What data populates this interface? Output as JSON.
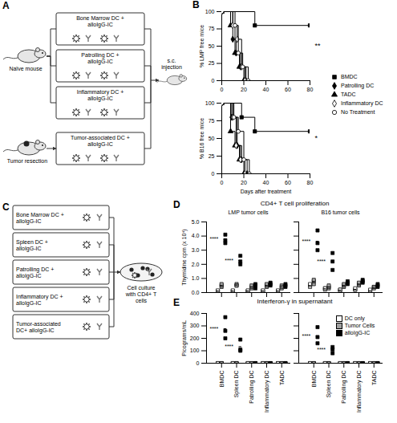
{
  "diagrams": {
    "A": {
      "letter": "A",
      "source": "Naïve mouse",
      "tumor_source": "Tumor resection",
      "injection": "s.c. injection",
      "boxes": [
        "Bone Marrow DC + alloIgG-IC",
        "Patrolling DC + alloIgG-IC",
        "Inflammatory DC + alloIgG-IC"
      ],
      "tumor_box": "Tumor-associated DC + alloIgG-IC"
    },
    "C": {
      "letter": "C",
      "boxes": [
        "Bone Marrow DC + alloIgG-IC",
        "Spleen DC + alloIgG-IC",
        "Patrolling DC + alloIgG-IC",
        "Inflammatory DC + alloIgG-IC",
        "Tumor-associated DC+ alloIgG-IC"
      ],
      "culture": "Cell culture with CD4+ T cells"
    }
  },
  "panels": {
    "B": {
      "letter": "B"
    },
    "D": {
      "letter": "D",
      "title": "CD4+ T cell proliferation"
    },
    "E": {
      "letter": "E",
      "title": "Interferon-γ in supernatant"
    }
  },
  "chart_data": [
    {
      "type": "line",
      "ylabel": "% LMP free mice",
      "xlim": [
        0,
        80
      ],
      "xticks": [
        0,
        20,
        40,
        60,
        80
      ],
      "ylim": [
        0,
        100
      ],
      "yticks": [
        0,
        25,
        50,
        75,
        100
      ],
      "legend": "right",
      "annotations": [
        {
          "text": "**"
        }
      ],
      "series": [
        {
          "name": "BMDC",
          "color": "#000000",
          "marker": "square",
          "x": [
            0,
            30,
            80
          ],
          "values": [
            100,
            80,
            80
          ]
        },
        {
          "name": "Patrolling DC",
          "color": "#000000",
          "marker": "diamond",
          "x": [
            0,
            10,
            13,
            17,
            20
          ],
          "values": [
            100,
            60,
            40,
            20,
            0
          ]
        },
        {
          "name": "TADC",
          "color": "#000000",
          "marker": "triangle",
          "x": [
            0,
            8,
            12,
            16,
            22
          ],
          "values": [
            100,
            80,
            40,
            20,
            0
          ]
        },
        {
          "name": "Inflammatory DC",
          "color": "#000000",
          "marker": "diamond-open",
          "x": [
            0,
            10,
            14,
            18,
            21
          ],
          "values": [
            100,
            80,
            60,
            20,
            0
          ]
        },
        {
          "name": "No Treatment",
          "color": "#000000",
          "marker": "circle-open",
          "x": [
            0,
            12,
            15,
            19,
            24
          ],
          "values": [
            100,
            80,
            40,
            20,
            0
          ]
        }
      ]
    },
    {
      "type": "line",
      "ylabel": "% B16 free mice",
      "xlabel": "Days after treatment",
      "xlim": [
        0,
        80
      ],
      "xticks": [
        0,
        20,
        40,
        60,
        80
      ],
      "ylim": [
        0,
        100
      ],
      "yticks": [
        0,
        25,
        50,
        75,
        100
      ],
      "annotations": [
        {
          "text": "*"
        }
      ],
      "series": [
        {
          "name": "BMDC",
          "color": "#000000",
          "marker": "square",
          "x": [
            0,
            18,
            30,
            80
          ],
          "values": [
            100,
            80,
            60,
            60
          ]
        },
        {
          "name": "Patrolling DC",
          "color": "#000000",
          "marker": "diamond",
          "x": [
            0,
            9,
            14,
            18,
            23
          ],
          "values": [
            100,
            80,
            40,
            20,
            0
          ]
        },
        {
          "name": "TADC",
          "color": "#000000",
          "marker": "triangle",
          "x": [
            0,
            8,
            12,
            16,
            20
          ],
          "values": [
            100,
            60,
            40,
            20,
            0
          ]
        },
        {
          "name": "Inflammatory DC",
          "color": "#000000",
          "marker": "diamond-open",
          "x": [
            0,
            10,
            13,
            17,
            21
          ],
          "values": [
            100,
            80,
            40,
            20,
            0
          ]
        },
        {
          "name": "No Treatment",
          "color": "#000000",
          "marker": "circle-open",
          "x": [
            0,
            11,
            15,
            20,
            25
          ],
          "values": [
            100,
            80,
            60,
            20,
            0
          ]
        }
      ]
    },
    {
      "type": "scatter",
      "title": "LMP tumor cells",
      "ylabel": "Thymidine cpm (x 10⁴)",
      "categories": [
        "BMDC",
        "Spleen DC",
        "Patrolling DC",
        "Inflammatory DC",
        "TADC"
      ],
      "ylim": [
        0,
        5
      ],
      "yticks": [
        0,
        1,
        2,
        3,
        4,
        5
      ],
      "tick_labels": "y",
      "annotations": [
        {
          "category": "BMDC",
          "text": "****"
        },
        {
          "category": "Spleen DC",
          "text": "****"
        }
      ],
      "series": [
        {
          "name": "DC only",
          "color": "#ffffff",
          "marker": "square",
          "values": [
            [
              0.1,
              0.1,
              0.15
            ],
            [
              0.1,
              0.1,
              0.15
            ],
            [
              0.1,
              0.1,
              0.15
            ],
            [
              0.1,
              0.1,
              0.15
            ],
            [
              0.1,
              0.1,
              0.15
            ]
          ],
          "means": [
            0.12,
            0.12,
            0.12,
            0.12,
            0.12
          ]
        },
        {
          "name": "Tumor Cells",
          "color": "#a0a0a0",
          "marker": "square",
          "values": [
            [
              0.4,
              0.5,
              0.6
            ],
            [
              0.5,
              0.6,
              0.5
            ],
            [
              0.3,
              0.4,
              0.5
            ],
            [
              0.4,
              0.5,
              0.6
            ],
            [
              0.3,
              0.5,
              0.4
            ]
          ],
          "means": [
            0.5,
            0.53,
            0.4,
            0.5,
            0.4
          ]
        },
        {
          "name": "alloIgG-IC",
          "color": "#000000",
          "marker": "square",
          "values": [
            [
              3.5,
              3.7,
              4.1
            ],
            [
              2.0,
              2.2,
              2.6
            ],
            [
              0.3,
              0.5,
              0.6
            ],
            [
              0.5,
              0.6,
              0.7
            ],
            [
              0.4,
              0.5,
              0.6
            ]
          ],
          "means": [
            3.77,
            2.27,
            0.47,
            0.6,
            0.5
          ]
        }
      ]
    },
    {
      "type": "scatter",
      "title": "B16 tumor cells",
      "categories": [
        "BMDC",
        "Spleen DC",
        "Patrolling DC",
        "Inflammatory DC",
        "TADC"
      ],
      "ylim": [
        0,
        5
      ],
      "yticks": [
        0,
        1,
        2,
        3,
        4,
        5
      ],
      "tick_labels": false,
      "annotations": [
        {
          "category": "BMDC",
          "text": "****"
        },
        {
          "category": "Spleen DC",
          "text": "****"
        }
      ],
      "series": [
        {
          "name": "DC only",
          "color": "#ffffff",
          "marker": "square",
          "values": [
            [
              0.4,
              0.5,
              0.6
            ],
            [
              0.2,
              0.3,
              0.3
            ],
            [
              0.1,
              0.2,
              0.2
            ],
            [
              0.2,
              0.2,
              0.3
            ],
            [
              0.1,
              0.1,
              0.2
            ]
          ],
          "means": [
            0.5,
            0.27,
            0.17,
            0.23,
            0.13
          ]
        },
        {
          "name": "Tumor Cells",
          "color": "#a0a0a0",
          "marker": "square",
          "values": [
            [
              0.6,
              0.8,
              0.9
            ],
            [
              0.3,
              0.4,
              0.5
            ],
            [
              0.4,
              0.5,
              0.6
            ],
            [
              0.5,
              0.6,
              0.7
            ],
            [
              0.3,
              0.4,
              0.4
            ]
          ],
          "means": [
            0.77,
            0.4,
            0.5,
            0.6,
            0.37
          ]
        },
        {
          "name": "alloIgG-IC",
          "color": "#000000",
          "marker": "square",
          "values": [
            [
              3.0,
              3.5,
              4.4
            ],
            [
              1.6,
              2.2,
              2.8
            ],
            [
              0.6,
              0.7,
              0.8
            ],
            [
              0.7,
              0.8,
              0.9
            ],
            [
              0.4,
              0.5,
              0.6
            ]
          ],
          "means": [
            3.63,
            2.2,
            0.7,
            0.8,
            0.5
          ]
        }
      ]
    },
    {
      "type": "scatter",
      "ylabel": "Picograms/mL",
      "categories": [
        "BMDC",
        "Spleen DC",
        "Patrolling DC",
        "Inflammatory DC",
        "TADC"
      ],
      "ylim": [
        0,
        400
      ],
      "yticks": [
        0,
        100,
        200,
        300,
        400
      ],
      "tick_labels": true,
      "annotations": [
        {
          "category": "BMDC",
          "text": "****"
        },
        {
          "category": "Spleen DC",
          "text": "****"
        }
      ],
      "series": [
        {
          "name": "DC only",
          "color": "#ffffff",
          "marker": "square",
          "values": [
            [
              0,
              0,
              0
            ],
            [
              0,
              0,
              0
            ],
            [
              0,
              0,
              0
            ],
            [
              0,
              0,
              0
            ],
            [
              0,
              0,
              0
            ]
          ],
          "means": [
            0,
            0,
            0,
            0,
            0
          ]
        },
        {
          "name": "Tumor Cells",
          "color": "#a0a0a0",
          "marker": "square",
          "values": [
            [
              0,
              0,
              0
            ],
            [
              0,
              0,
              0
            ],
            [
              0,
              0,
              0
            ],
            [
              0,
              0,
              0
            ],
            [
              0,
              0,
              0
            ]
          ],
          "means": [
            0,
            0,
            0,
            0,
            0
          ]
        },
        {
          "name": "alloIgG-IC",
          "color": "#000000",
          "marker": "square",
          "values": [
            [
              200,
              260,
              370
            ],
            [
              100,
              110,
              190
            ],
            [
              0,
              0,
              0
            ],
            [
              0,
              0,
              0
            ],
            [
              0,
              0,
              0
            ]
          ],
          "means": [
            277,
            133,
            0,
            0,
            0
          ]
        }
      ]
    },
    {
      "type": "scatter",
      "categories": [
        "BMDC",
        "Spleen DC",
        "Patrolling DC",
        "Inflammatory DC",
        "TADC"
      ],
      "ylim": [
        0,
        400
      ],
      "yticks": [
        0,
        100,
        200,
        300,
        400
      ],
      "tick_labels": "x",
      "legend": "top-right",
      "annotations": [
        {
          "category": "BMDC",
          "text": "****"
        },
        {
          "category": "Spleen DC",
          "text": "****"
        }
      ],
      "series": [
        {
          "name": "DC only",
          "color": "#ffffff",
          "marker": "square",
          "values": [
            [
              0,
              0,
              0
            ],
            [
              0,
              0,
              0
            ],
            [
              0,
              0,
              0
            ],
            [
              0,
              0,
              0
            ],
            [
              0,
              0,
              0
            ]
          ],
          "means": [
            0,
            0,
            0,
            0,
            0
          ]
        },
        {
          "name": "Tumor Cells",
          "color": "#a0a0a0",
          "marker": "square",
          "values": [
            [
              0,
              0,
              0
            ],
            [
              0,
              0,
              0
            ],
            [
              0,
              0,
              0
            ],
            [
              0,
              0,
              0
            ],
            [
              0,
              0,
              0
            ]
          ],
          "means": [
            0,
            0,
            0,
            0,
            0
          ]
        },
        {
          "name": "alloIgG-IC",
          "color": "#000000",
          "marker": "square",
          "values": [
            [
              160,
              210,
              290
            ],
            [
              80,
              110,
              130
            ],
            [
              0,
              0,
              0
            ],
            [
              0,
              0,
              0
            ],
            [
              0,
              0,
              0
            ]
          ],
          "means": [
            220,
            107,
            0,
            0,
            0
          ]
        }
      ]
    }
  ]
}
